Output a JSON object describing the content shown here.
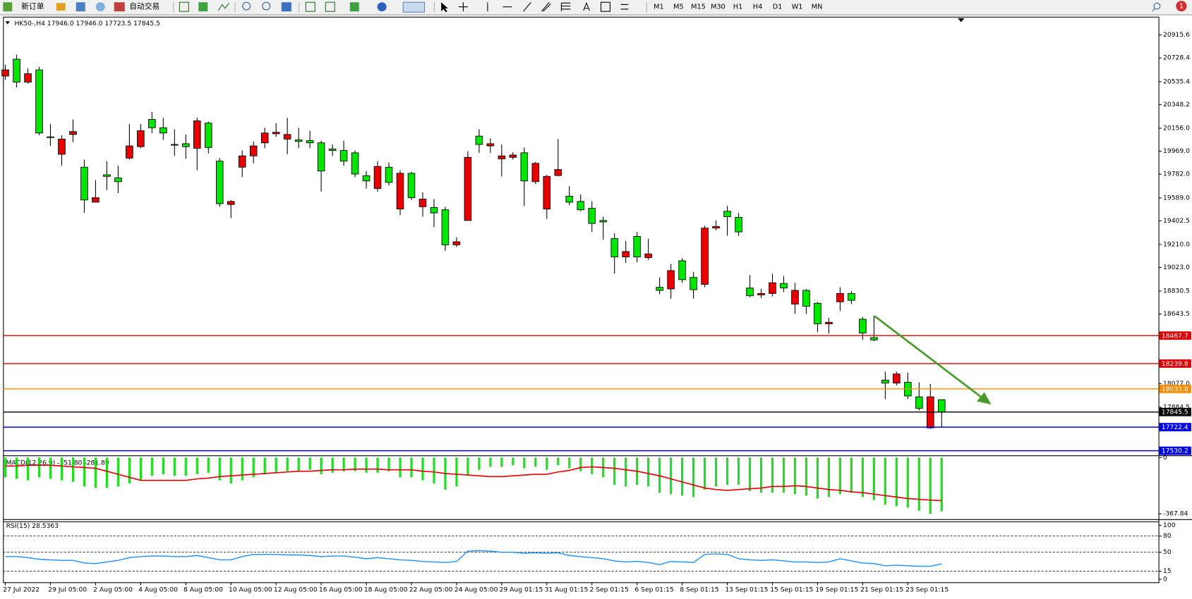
{
  "toolbar": {
    "new_order": "新订单",
    "auto_trading": "自动交易",
    "timeframes": [
      "M1",
      "M5",
      "M15",
      "M30",
      "H1",
      "H4",
      "D1",
      "W1",
      "MN"
    ],
    "notifications": "1"
  },
  "chart_data": [
    {
      "type": "candlestick",
      "title": "HK50-,H4  17946.0 17946.0 17723.5 17845.5",
      "up_color": "#e60000",
      "down_color": "#00e600",
      "categories": [
        "27 Jul 2022",
        null,
        null,
        null,
        "29 Jul 05:00",
        null,
        null,
        null,
        "2 Aug 05:00",
        null,
        null,
        null,
        "4 Aug 05:00",
        null,
        null,
        null,
        "8 Aug 05:00",
        null,
        null,
        null,
        "10 Aug 05:00",
        null,
        null,
        null,
        "12 Aug 05:00",
        null,
        null,
        null,
        "16 Aug 05:00",
        null,
        null,
        null,
        "18 Aug 05:00",
        null,
        null,
        null,
        "22 Aug 05:00",
        null,
        null,
        null,
        "24 Aug 05:00",
        null,
        null,
        null,
        "29 Aug 01:15",
        null,
        null,
        null,
        "31 Aug 01:15",
        null,
        null,
        null,
        "2 Sep 01:15",
        null,
        null,
        null,
        "6 Sep 01:15",
        null,
        null,
        null,
        "8 Sep 01:15",
        null,
        null,
        null,
        "13 Sep 01:15",
        null,
        null,
        null,
        "15 Sep 01:15",
        null,
        null,
        null,
        "19 Sep 01:15",
        null,
        null,
        null,
        "21 Sep 01:15",
        null,
        null,
        null,
        "23 Sep 01:15",
        null,
        null,
        null
      ],
      "open": [
        20581,
        20718,
        20532,
        20631,
        20086,
        19944,
        20105,
        19839,
        19554,
        19777,
        19752,
        19913,
        20006,
        20228,
        20160,
        20024,
        20030,
        19993,
        20198,
        19888,
        19535,
        19839,
        19931,
        20037,
        20111,
        20068,
        20061,
        20055,
        20037,
        19987,
        19975,
        19956,
        19770,
        19665,
        19839,
        19498,
        19789,
        19517,
        19511,
        19492,
        19207,
        19405,
        20092,
        20012,
        19907,
        19919,
        19956,
        19721,
        19498,
        19771,
        19603,
        19560,
        19504,
        19405,
        19257,
        19108,
        19275,
        19102,
        18861,
        18848,
        19077,
        18941,
        18885,
        19343,
        19480,
        19430,
        18855,
        18799,
        18811,
        18892,
        18724,
        18836,
        18731,
        18563,
        18743,
        18811,
        18601,
        18452,
        18105,
        18081,
        18087,
        17969,
        17716,
        17946
      ],
      "high": [
        20674,
        20755,
        20643,
        20656,
        20191,
        20099,
        20228,
        19901,
        19733,
        19888,
        19851,
        20191,
        20191,
        20290,
        20241,
        20148,
        20105,
        20241,
        20210,
        19913,
        19572,
        19975,
        20049,
        20160,
        20198,
        20241,
        20160,
        20136,
        20055,
        20024,
        20055,
        19975,
        19808,
        19888,
        19876,
        19814,
        19801,
        19634,
        19579,
        19517,
        19269,
        19969,
        20148,
        20074,
        20024,
        19962,
        19999,
        19882,
        19777,
        20068,
        19684,
        19616,
        19560,
        19436,
        19300,
        19238,
        19312,
        19257,
        18941,
        19052,
        19096,
        18985,
        19362,
        19405,
        19523,
        19467,
        18960,
        18848,
        18972,
        18953,
        18898,
        18848,
        18743,
        18613,
        18861,
        18830,
        18619,
        18632,
        18174,
        18174,
        18167,
        18087,
        18075,
        17946
      ],
      "low": [
        20550,
        20488,
        20519,
        20099,
        20012,
        19851,
        20043,
        19467,
        19554,
        19653,
        19628,
        19901,
        19993,
        20117,
        20061,
        19931,
        19907,
        19814,
        19950,
        19517,
        19424,
        19758,
        19870,
        19993,
        20086,
        19944,
        19993,
        19993,
        19640,
        19931,
        19851,
        19758,
        19665,
        19640,
        19690,
        19449,
        19572,
        19436,
        19350,
        19158,
        19189,
        19405,
        19956,
        19956,
        19764,
        19901,
        19523,
        19702,
        19418,
        19764,
        19529,
        19480,
        19312,
        19250,
        18972,
        19059,
        19065,
        19084,
        18805,
        18768,
        18898,
        18768,
        18861,
        19325,
        19281,
        19281,
        18780,
        18774,
        18786,
        18823,
        18644,
        18644,
        18495,
        18483,
        18669,
        18724,
        18433,
        18421,
        17951,
        18062,
        17951,
        17858,
        17709,
        17723.5
      ],
      "close": [
        20631,
        20532,
        20600,
        20117,
        20080,
        20068,
        20129,
        19572,
        19591,
        19764,
        19721,
        20012,
        20136,
        20160,
        20117,
        20018,
        20006,
        20216,
        19999,
        19542,
        19560,
        19931,
        20012,
        20117,
        20123,
        20105,
        20049,
        20037,
        19808,
        19975,
        19888,
        19783,
        19727,
        19845,
        19715,
        19789,
        19591,
        19579,
        19467,
        19207,
        19232,
        19919,
        20024,
        20030,
        19931,
        19938,
        19727,
        19870,
        19764,
        19820,
        19554,
        19492,
        19381,
        19393,
        19108,
        19152,
        19108,
        19133,
        18836,
        18997,
        18923,
        18842,
        19343,
        19356,
        19436,
        19312,
        18792,
        18811,
        18898,
        18855,
        18836,
        18706,
        18563,
        18576,
        18811,
        18755,
        18489,
        18433,
        18081,
        18155,
        17976,
        17876,
        17969,
        17845.5
      ],
      "ylim": [
        17499,
        21064
      ],
      "yticks": [
        20915.6,
        20728.4,
        20535.4,
        20348.2,
        {
          "value": 20156,
          "label": "20156.0"
        },
        {
          "value": 19969,
          "label": "19969.0"
        },
        {
          "value": 19782,
          "label": "19782.0"
        },
        {
          "value": 19589,
          "label": "19589.0"
        },
        19402.5,
        {
          "value": 19210,
          "label": "19210.0"
        },
        {
          "value": 19023,
          "label": "19023.0"
        },
        18830.5,
        18643.5,
        {
          "value": 18077,
          "label": "18077.0"
        },
        17884.5
      ],
      "hlines": [
        {
          "value": 18467.7,
          "color": "#e00000"
        },
        {
          "value": 18239.8,
          "color": "#e00000"
        },
        {
          "value": 18033.8,
          "color": "#ff8c00"
        },
        {
          "value": 17845.5,
          "color": "#000000"
        },
        {
          "value": 17722.4,
          "color": "#0000e0"
        },
        {
          "value": 17530.2,
          "color": "#0000e0"
        }
      ]
    },
    {
      "type": "macd",
      "title": "MACD(12,26,9) -351.80 -281.89",
      "color": "#22dd22",
      "signal_color": "#e00000",
      "values": [
        -129,
        -139,
        -149,
        -129,
        -139,
        -149,
        -159,
        -189,
        -199,
        -199,
        -189,
        -169,
        -149,
        -119,
        -109,
        -119,
        -119,
        -109,
        -99,
        -149,
        -169,
        -149,
        -129,
        -109,
        -99,
        -89,
        -89,
        -80,
        -109,
        -99,
        -89,
        -89,
        -99,
        -99,
        -89,
        -129,
        -129,
        -149,
        -169,
        -209,
        -189,
        -119,
        -80,
        -60,
        -60,
        -50,
        -70,
        -60,
        -80,
        -50,
        -70,
        -89,
        -109,
        -129,
        -179,
        -189,
        -179,
        -189,
        -229,
        -239,
        -249,
        -258,
        -209,
        -189,
        -179,
        -179,
        -219,
        -229,
        -229,
        -229,
        -239,
        -249,
        -268,
        -258,
        -239,
        -229,
        -258,
        -278,
        -308,
        -318,
        -328,
        -348,
        -368,
        -351.8
      ],
      "signal": [
        -55,
        -55,
        -50,
        -50,
        -50,
        -55,
        -60,
        -65,
        -70,
        -89,
        -109,
        -129,
        -149,
        -149,
        -149,
        -149,
        -149,
        -139,
        -134,
        -124,
        -119,
        -114,
        -109,
        -104,
        -99,
        -94,
        -89,
        -89,
        -84,
        -80,
        -80,
        -75,
        -75,
        -75,
        -80,
        -80,
        -80,
        -89,
        -94,
        -104,
        -109,
        -114,
        -119,
        -124,
        -124,
        -119,
        -114,
        -109,
        -109,
        -94,
        -84,
        -65,
        -60,
        -65,
        -70,
        -80,
        -89,
        -104,
        -119,
        -139,
        -159,
        -179,
        -199,
        -209,
        -214,
        -209,
        -204,
        -199,
        -189,
        -189,
        -184,
        -189,
        -199,
        -209,
        -214,
        -224,
        -229,
        -239,
        -249,
        -258,
        -268,
        -273,
        -278,
        -281.89
      ],
      "ylim": [
        -398,
        10
      ],
      "yticks": [
        0,
        -367.84
      ]
    },
    {
      "type": "line",
      "title": "RSI(15) 28.5363",
      "color": "#1e90ff",
      "values": [
        42,
        42,
        40,
        37,
        36,
        35,
        35,
        30,
        29,
        32,
        35,
        40,
        42,
        43,
        43,
        42,
        42,
        44,
        40,
        36,
        36,
        42,
        46,
        46,
        46,
        45,
        45,
        44,
        42,
        43,
        43,
        41,
        38,
        40,
        38,
        36,
        35,
        33,
        32,
        31,
        33,
        52,
        53,
        52,
        50,
        50,
        48,
        49,
        48,
        49,
        44,
        42,
        40,
        38,
        34,
        32,
        33,
        31,
        27,
        33,
        32,
        31,
        46,
        47,
        46,
        38,
        36,
        35,
        36,
        34,
        32,
        32,
        31,
        32,
        38,
        34,
        30,
        29,
        25,
        26,
        25,
        24,
        24,
        28.5363
      ],
      "ylim": [
        -5.6,
        105.6
      ],
      "yticks": [
        100,
        80,
        50,
        15,
        0
      ],
      "levels": [
        80,
        50,
        15
      ]
    }
  ]
}
